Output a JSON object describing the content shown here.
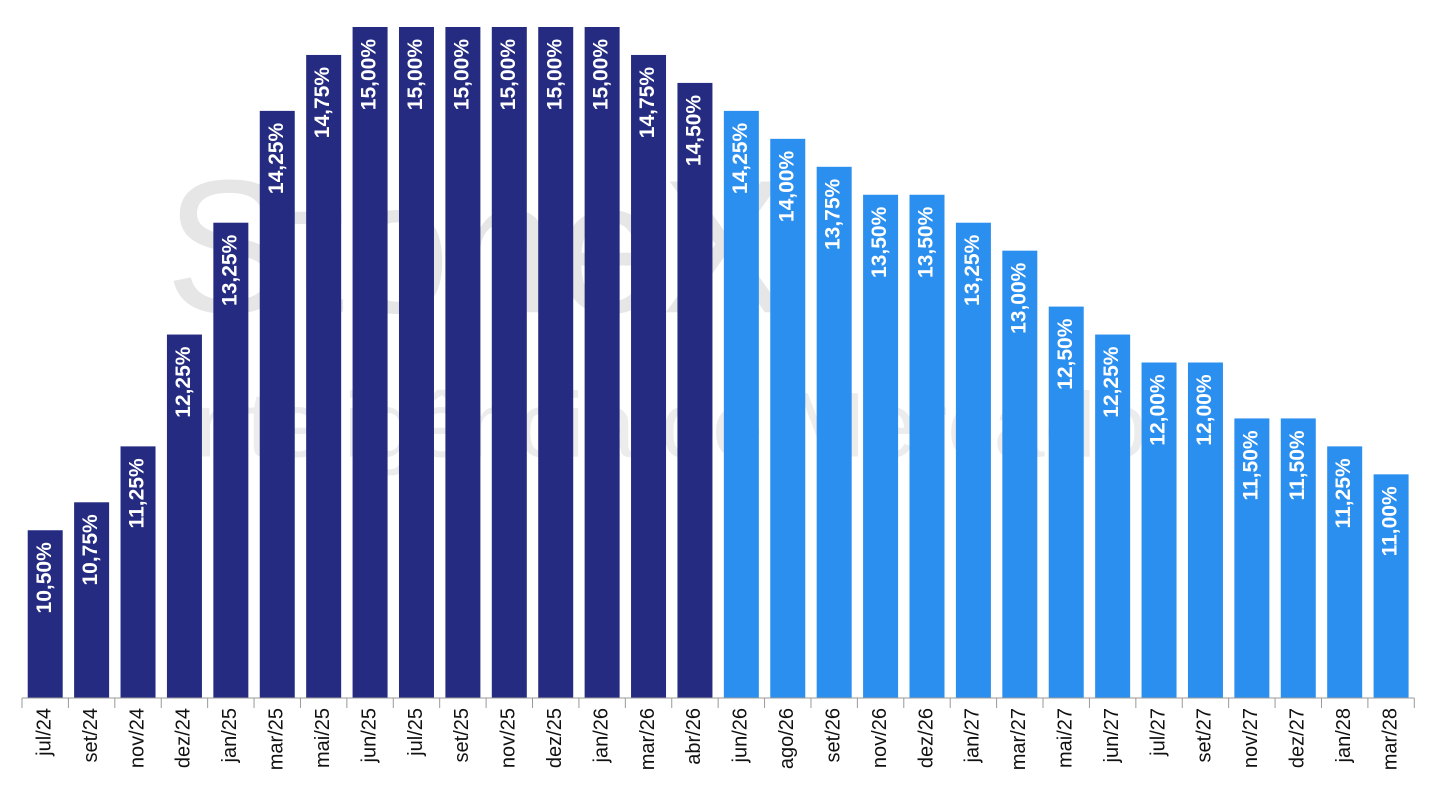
{
  "chart_data": {
    "type": "bar",
    "watermark": [
      "StoneX",
      "Inteligência de Mercado"
    ],
    "categories": [
      "jul/24",
      "set/24",
      "nov/24",
      "dez/24",
      "jan/25",
      "mar/25",
      "mai/25",
      "jun/25",
      "jul/25",
      "set/25",
      "nov/25",
      "dez/25",
      "jan/26",
      "mar/26",
      "abr/26",
      "jun/26",
      "ago/26",
      "set/26",
      "nov/26",
      "dez/26",
      "jan/27",
      "mar/27",
      "mai/27",
      "jun/27",
      "jul/27",
      "set/27",
      "nov/27",
      "dez/27",
      "jan/28",
      "mar/28"
    ],
    "values": [
      10.5,
      10.75,
      11.25,
      12.25,
      13.25,
      14.25,
      14.75,
      15,
      15,
      15,
      15,
      15,
      15,
      14.75,
      14.5,
      14.25,
      14,
      13.75,
      13.5,
      13.5,
      13.25,
      13,
      12.5,
      12.25,
      12,
      12,
      11.5,
      11.5,
      11.25,
      11
    ],
    "value_labels": [
      "10,50%",
      "10,75%",
      "11,25%",
      "12,25%",
      "13,25%",
      "14,25%",
      "14,75%",
      "15,00%",
      "15,00%",
      "15,00%",
      "15,00%",
      "15,00%",
      "15,00%",
      "14,75%",
      "14,50%",
      "14,25%",
      "14,00%",
      "13,75%",
      "13,50%",
      "13,50%",
      "13,25%",
      "13,00%",
      "12,50%",
      "12,25%",
      "12,00%",
      "12,00%",
      "11,50%",
      "11,50%",
      "11,25%",
      "11,00%"
    ],
    "colors": [
      "#252b80",
      "#252b80",
      "#252b80",
      "#252b80",
      "#252b80",
      "#252b80",
      "#252b80",
      "#252b80",
      "#252b80",
      "#252b80",
      "#252b80",
      "#252b80",
      "#252b80",
      "#252b80",
      "#252b80",
      "#2b8ff0",
      "#2b8ff0",
      "#2b8ff0",
      "#2b8ff0",
      "#2b8ff0",
      "#2b8ff0",
      "#2b8ff0",
      "#2b8ff0",
      "#2b8ff0",
      "#2b8ff0",
      "#2b8ff0",
      "#2b8ff0",
      "#2b8ff0",
      "#2b8ff0",
      "#2b8ff0"
    ],
    "ylim": [
      9,
      15
    ]
  }
}
